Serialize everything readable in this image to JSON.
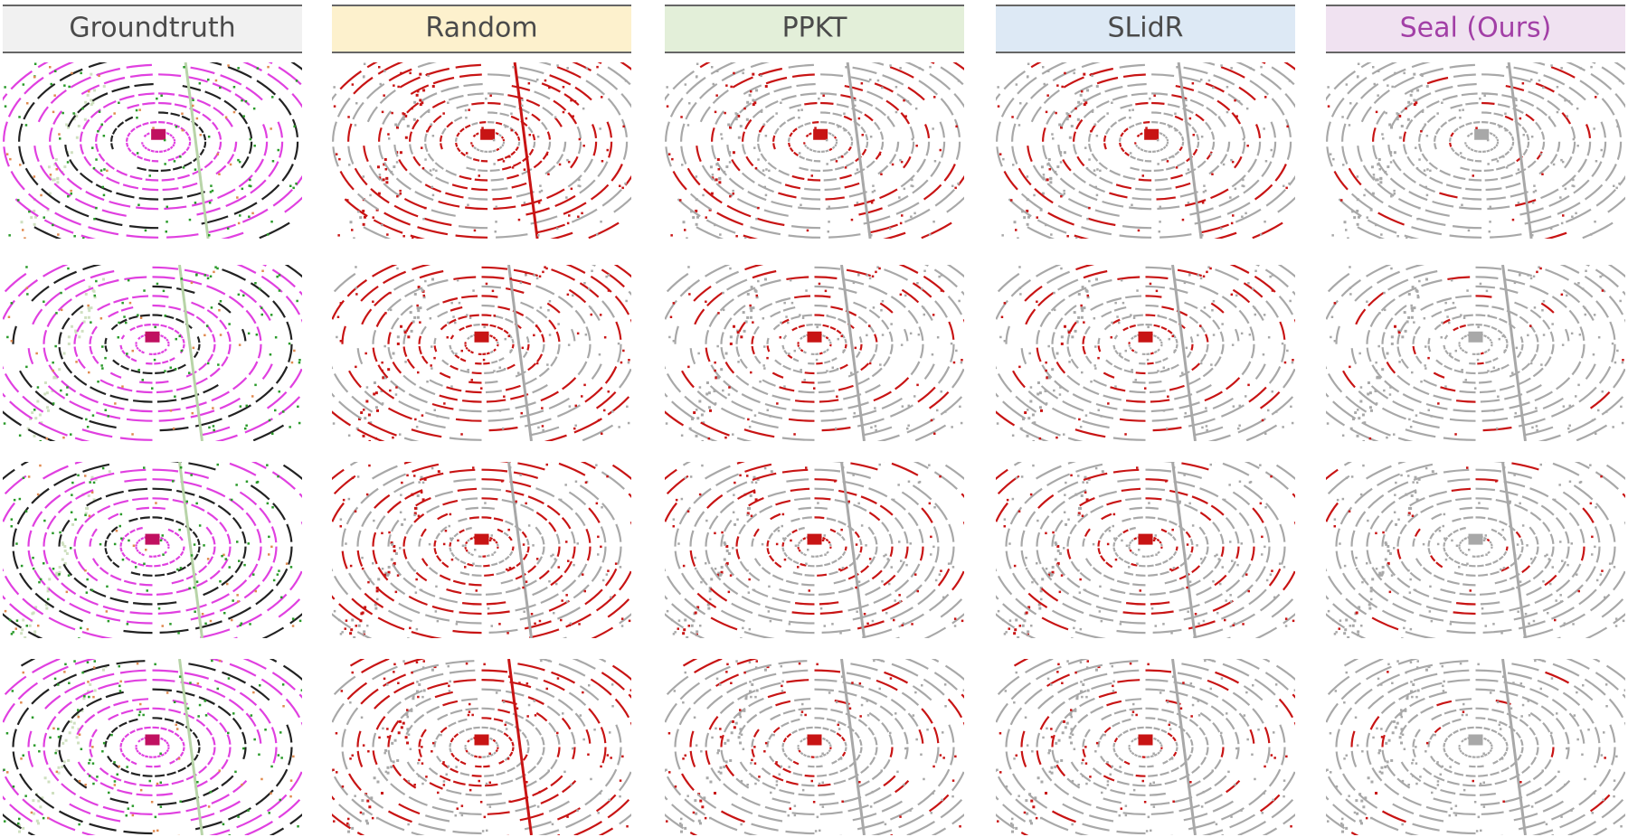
{
  "columns": [
    "Groundtruth",
    "Random",
    "PPKT",
    "SLidR",
    "Seal (Ours)"
  ]
}
